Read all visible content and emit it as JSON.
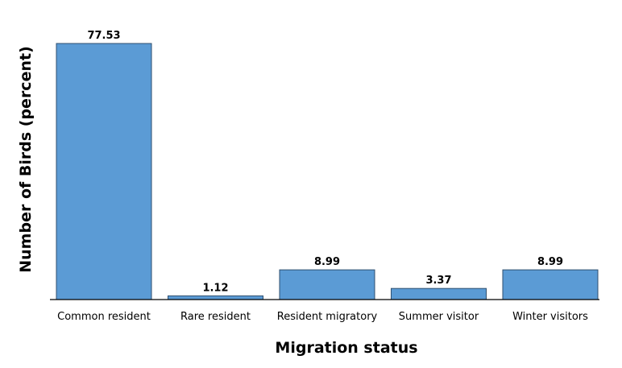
{
  "chart_data": {
    "type": "bar",
    "title": "",
    "xlabel": "Migration status",
    "ylabel": "Number of Birds (percent)",
    "categories": [
      "Common resident",
      "Rare resident",
      "Resident migratory",
      "Summer visitor",
      "Winter visitors"
    ],
    "values": [
      77.53,
      1.12,
      8.99,
      3.37,
      8.99
    ],
    "value_labels": [
      "77.53",
      "1.12",
      "8.99",
      "3.37",
      "8.99"
    ],
    "ylim": [
      0,
      77.53
    ],
    "grid": false,
    "legend": "none",
    "bar_color": "#5b9bd5"
  }
}
